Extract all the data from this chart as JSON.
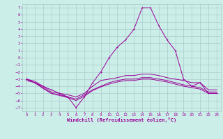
{
  "xlabel": "Windchill (Refroidissement éolien,°C)",
  "bg_color": "#cceee8",
  "grid_color": "#aacccc",
  "line_color": "#990099",
  "xlim": [
    -0.5,
    23.5
  ],
  "ylim": [
    -7.5,
    7.5
  ],
  "xticks": [
    0,
    1,
    2,
    3,
    4,
    5,
    6,
    7,
    8,
    9,
    10,
    11,
    12,
    13,
    14,
    15,
    16,
    17,
    18,
    19,
    20,
    21,
    22,
    23
  ],
  "yticks": [
    -7,
    -6,
    -5,
    -4,
    -3,
    -2,
    -1,
    0,
    1,
    2,
    3,
    4,
    5,
    6,
    7
  ],
  "line1_x": [
    0,
    1,
    2,
    3,
    4,
    5,
    6,
    7,
    8,
    9,
    10,
    11,
    12,
    13,
    14,
    15,
    16,
    17,
    18,
    19,
    20,
    21,
    22,
    23
  ],
  "line1_y": [
    -3,
    -3.5,
    -4.0,
    -4.5,
    -5.0,
    -5.5,
    -7.0,
    -5.5,
    -3.5,
    -2.0,
    0.0,
    1.5,
    2.5,
    4.0,
    7.0,
    7.0,
    4.5,
    2.5,
    1.0,
    -3.0,
    -4.0,
    -3.5,
    -5.0,
    -5.0
  ],
  "line2_x": [
    0,
    1,
    2,
    3,
    4,
    5,
    6,
    7,
    8,
    9,
    10,
    11,
    12,
    13,
    14,
    15,
    16,
    17,
    18,
    19,
    20,
    21,
    22,
    23
  ],
  "line2_y": [
    -3.0,
    -3.3,
    -4.0,
    -4.8,
    -5.0,
    -5.2,
    -5.5,
    -5.0,
    -4.0,
    -3.2,
    -3.0,
    -2.8,
    -2.5,
    -2.5,
    -2.3,
    -2.3,
    -2.5,
    -2.8,
    -3.0,
    -3.2,
    -3.5,
    -3.5,
    -4.5,
    -4.5
  ],
  "line3_x": [
    0,
    1,
    2,
    3,
    4,
    5,
    6,
    7,
    8,
    9,
    10,
    11,
    12,
    13,
    14,
    15,
    16,
    17,
    18,
    19,
    20,
    21,
    22,
    23
  ],
  "line3_y": [
    -3.0,
    -3.5,
    -4.2,
    -5.0,
    -5.2,
    -5.5,
    -5.8,
    -5.2,
    -4.5,
    -4.0,
    -3.5,
    -3.2,
    -3.0,
    -3.0,
    -2.8,
    -2.8,
    -3.0,
    -3.2,
    -3.5,
    -3.8,
    -4.0,
    -4.2,
    -4.8,
    -4.8
  ],
  "line4_x": [
    0,
    1,
    2,
    3,
    4,
    5,
    6,
    7,
    8,
    9,
    10,
    11,
    12,
    13,
    14,
    15,
    16,
    17,
    18,
    19,
    20,
    21,
    22,
    23
  ],
  "line4_y": [
    -3.2,
    -3.5,
    -4.3,
    -5.0,
    -5.3,
    -5.6,
    -6.0,
    -5.4,
    -4.6,
    -4.1,
    -3.7,
    -3.4,
    -3.2,
    -3.2,
    -3.0,
    -3.0,
    -3.2,
    -3.4,
    -3.7,
    -4.0,
    -4.2,
    -4.4,
    -5.0,
    -5.0
  ]
}
